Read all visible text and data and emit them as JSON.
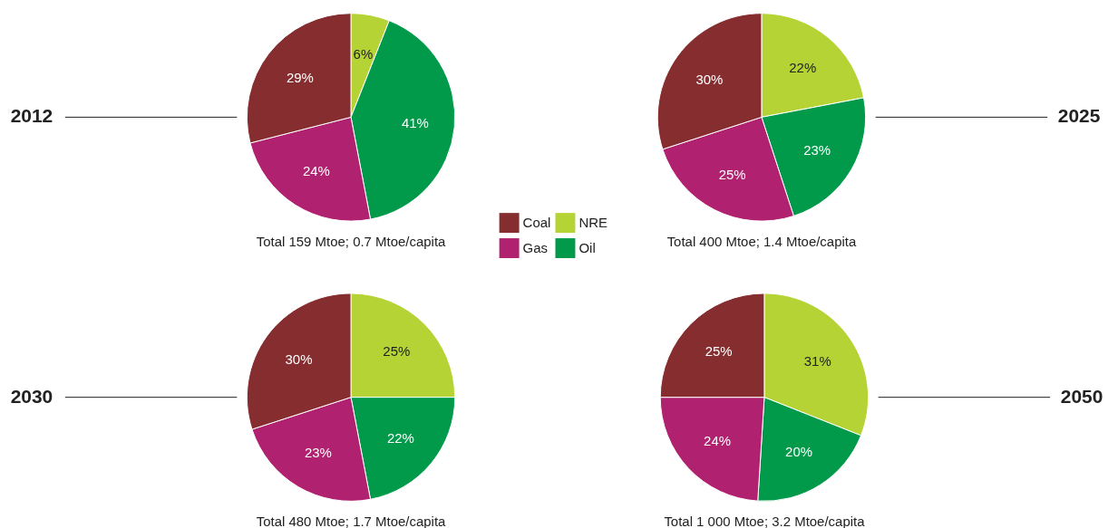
{
  "chart_data": [
    {
      "type": "pie",
      "title": "2012",
      "categories": [
        "NRE",
        "Oil",
        "Gas",
        "Coal"
      ],
      "values": [
        6,
        41,
        24,
        29
      ],
      "colors": [
        "#b5d334",
        "#009a4a",
        "#b0226f",
        "#862d30"
      ],
      "value_labels": [
        "6%",
        "41%",
        "24%",
        "29%"
      ],
      "annotations": [
        "Total 159 Mtoe; 0.7 Mtoe/capita"
      ],
      "legend": "bottom right"
    },
    {
      "type": "pie",
      "title": "2025",
      "categories": [
        null,
        null,
        null,
        null
      ],
      "values": [
        22,
        23,
        25,
        30
      ],
      "colors": [
        "#b5d334",
        "#009a4a",
        "#b0226f",
        "#862d30"
      ],
      "value_labels": [
        "22%",
        "23%",
        "25%",
        "30%"
      ],
      "annotations": [
        "Total 400 Mtoe; 1.4 Mtoe/capita"
      ]
    },
    {
      "type": "pie",
      "title": "2030",
      "categories": [
        null,
        null,
        null,
        null
      ],
      "values": [
        25,
        22,
        23,
        30
      ],
      "colors": [
        "#b5d334",
        "#009a4a",
        "#b0226f",
        "#862d30"
      ],
      "value_labels": [
        "25%",
        "22%",
        "23%",
        "30%"
      ],
      "annotations": [
        "Total 480 Mtoe; 1.7 Mtoe/capita"
      ]
    },
    {
      "type": "pie",
      "title": "2050",
      "categories": [
        null,
        null,
        null,
        null
      ],
      "values": [
        31,
        20,
        24,
        25
      ],
      "colors": [
        "#b5d334",
        "#009a4a",
        "#b0226f",
        "#862d30"
      ],
      "value_labels": [
        "31%",
        "20%",
        "24%",
        "25%"
      ],
      "annotations": [
        "Total 1 000 Mtoe; 3.2 Mtoe/capita"
      ]
    }
  ]
}
